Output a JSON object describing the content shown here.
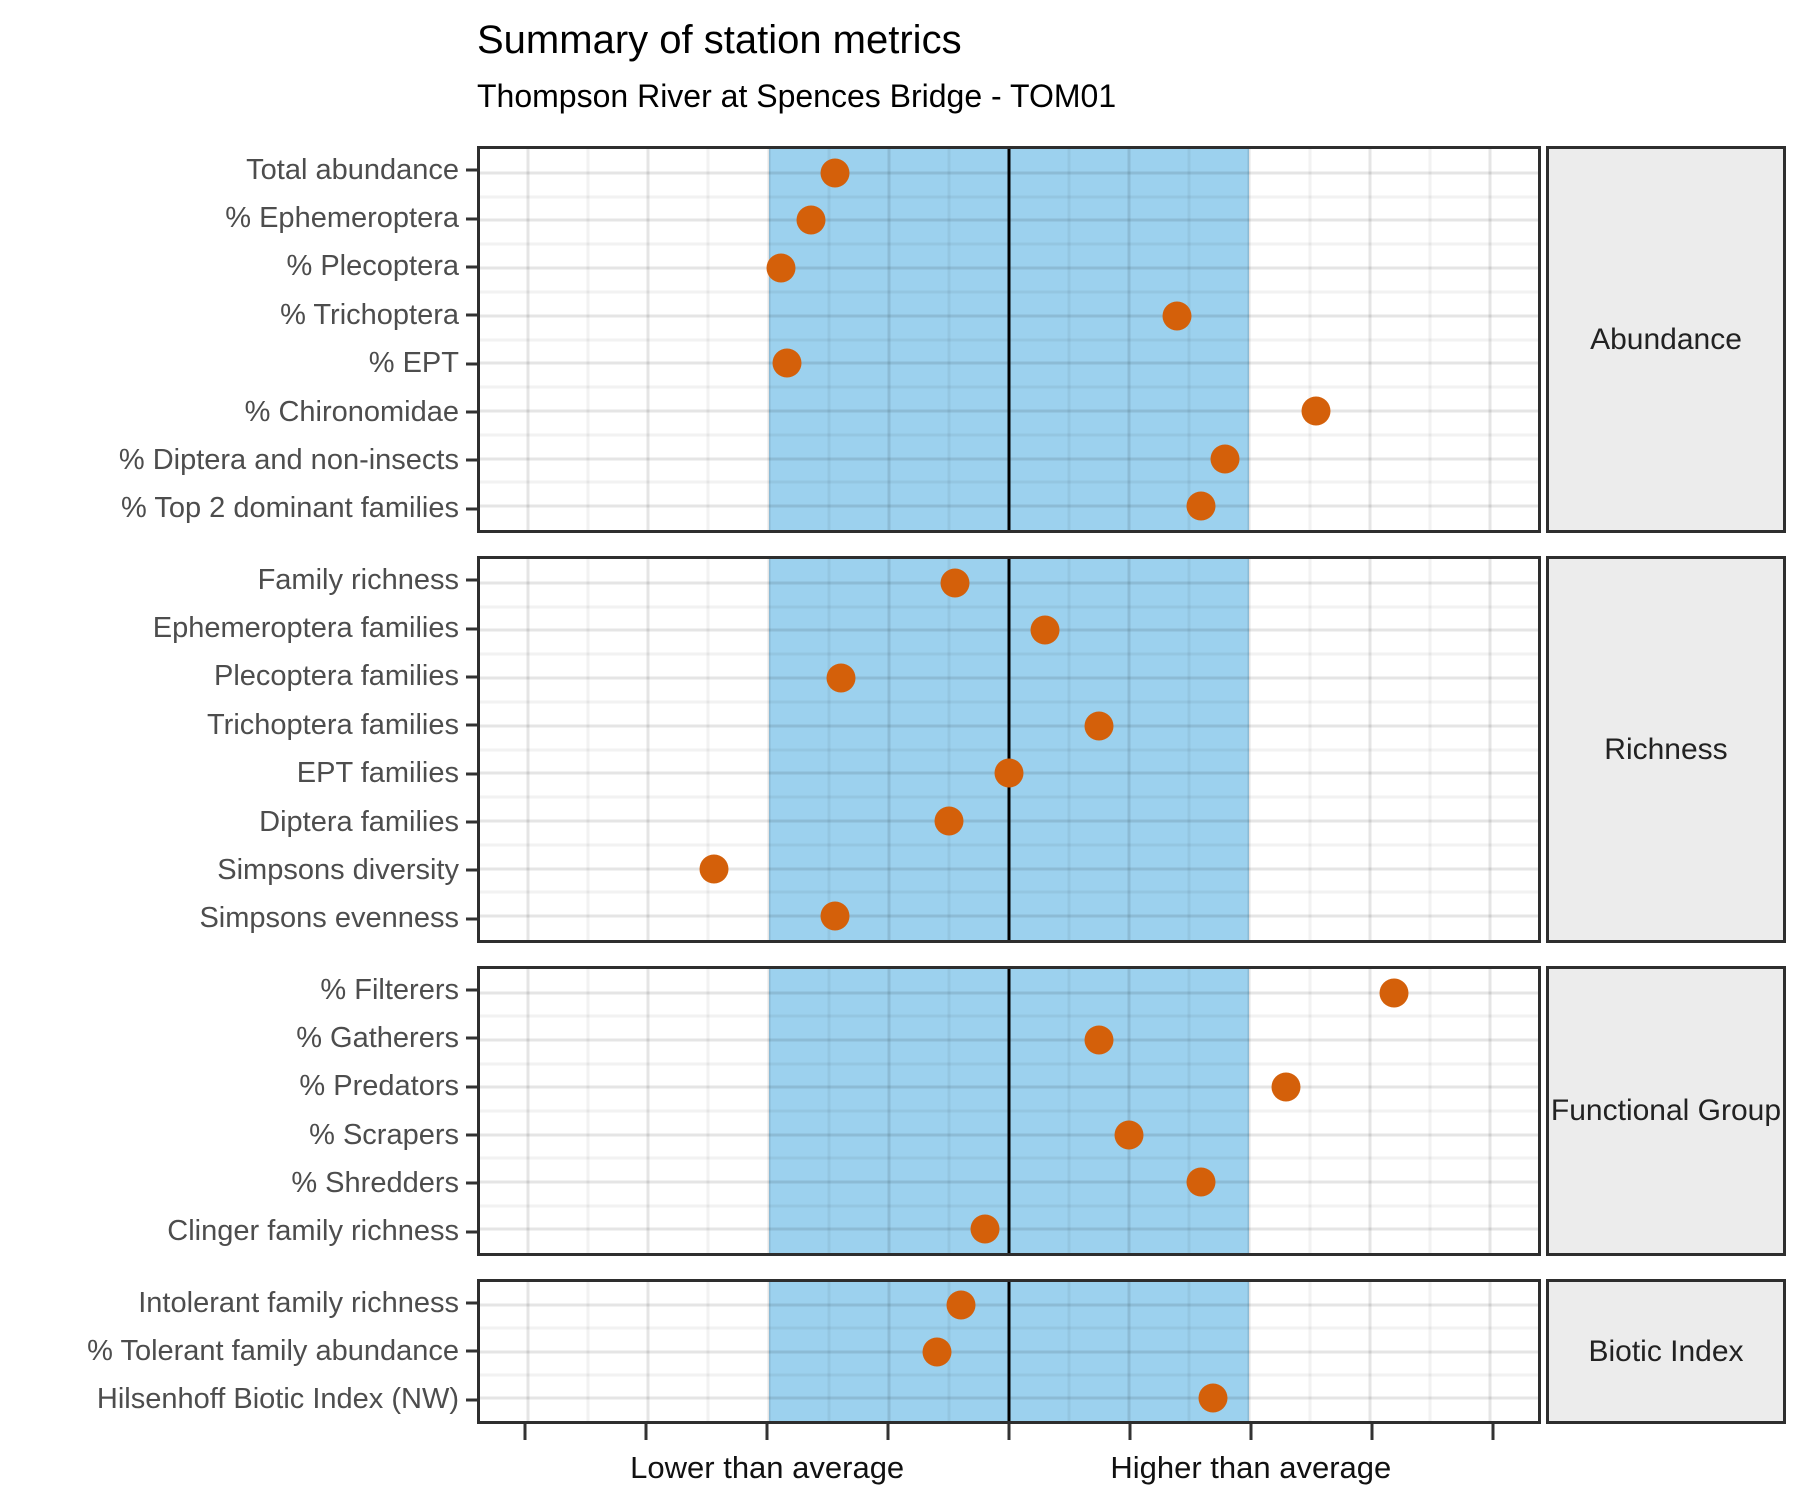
{
  "chart_data": {
    "type": "scatter",
    "title": "Summary of station metrics",
    "subtitle": "Thompson River at Spences Bridge - TOM01",
    "x_axis": {
      "min": -4.4,
      "max": 4.4,
      "major_ticks": [
        -4,
        -3,
        -2,
        -1,
        0,
        1,
        2,
        3,
        4
      ],
      "minor_tick_step": 0.5,
      "tick_labels": [
        {
          "value": -2,
          "text": "Lower than average"
        },
        {
          "value": 2,
          "text": "Higher than average"
        }
      ],
      "center_line_x": 0
    },
    "average_band": {
      "from": -2,
      "to": 2,
      "color": "#9CD1EE"
    },
    "point_color": "#D4600A",
    "grid": "major and minor, light grey, drawn over band",
    "legend_position": "none",
    "panels": [
      {
        "facet": "Abundance",
        "rows": [
          {
            "label": "Total abundance",
            "value": -1.45
          },
          {
            "label": "% Ephemeroptera",
            "value": -1.65
          },
          {
            "label": "% Plecoptera",
            "value": -1.9
          },
          {
            "label": "% Trichoptera",
            "value": 1.4
          },
          {
            "label": "% EPT",
            "value": -1.85
          },
          {
            "label": "% Chironomidae",
            "value": 2.55
          },
          {
            "label": "% Diptera and non-insects",
            "value": 1.8
          },
          {
            "label": "% Top 2 dominant families",
            "value": 1.6
          }
        ]
      },
      {
        "facet": "Richness",
        "rows": [
          {
            "label": "Family richness",
            "value": -0.45
          },
          {
            "label": "Ephemeroptera families",
            "value": 0.3
          },
          {
            "label": "Plecoptera families",
            "value": -1.4
          },
          {
            "label": "Trichoptera families",
            "value": 0.75
          },
          {
            "label": "EPT families",
            "value": 0
          },
          {
            "label": "Diptera families",
            "value": -0.5
          },
          {
            "label": "Simpsons diversity",
            "value": -2.45
          },
          {
            "label": "Simpsons evenness",
            "value": -1.45
          }
        ]
      },
      {
        "facet": "Functional Group",
        "rows": [
          {
            "label": "% Filterers",
            "value": 3.2
          },
          {
            "label": "% Gatherers",
            "value": 0.75
          },
          {
            "label": "% Predators",
            "value": 2.3
          },
          {
            "label": "% Scrapers",
            "value": 1.0
          },
          {
            "label": "% Shredders",
            "value": 1.6
          },
          {
            "label": "Clinger family richness",
            "value": -0.2
          }
        ]
      },
      {
        "facet": "Biotic Index",
        "rows": [
          {
            "label": "Intolerant family richness",
            "value": -0.4
          },
          {
            "label": "% Tolerant family abundance",
            "value": -0.6
          },
          {
            "label": "Hilsenhoff Biotic Index (NW)",
            "value": 1.7
          }
        ]
      }
    ]
  },
  "colors": {
    "background": "#FFFFFF",
    "panel_border": "#2E2E2E",
    "strip_background": "#ECECEC",
    "y_label_text": "#4D4D4D",
    "zero_line": "#000000",
    "band": "#9CD1EE",
    "point": "#D4600A"
  }
}
